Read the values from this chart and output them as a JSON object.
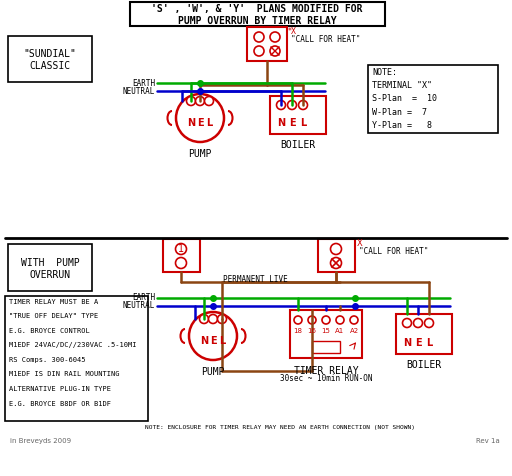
{
  "bg_color": "#ffffff",
  "red": "#cc0000",
  "green": "#00aa00",
  "blue": "#0000cc",
  "brown": "#8B4513",
  "black": "#000000",
  "gray": "#666666",
  "title_line1": "'S' , 'W', & 'Y'  PLANS MODIFIED FOR",
  "title_line2": "PUMP OVERRUN BY TIMER RELAY",
  "sundial_label1": "\"SUNDIAL\"",
  "sundial_label2": "CLASSIC",
  "with_pump1": "WITH  PUMP",
  "with_pump2": "OVERRUN",
  "earth_label": "EARTH",
  "neutral_label": "NEUTRAL",
  "perm_live": "PERMANENT LIVE",
  "call_heat": "\"CALL FOR HEAT\"",
  "pump_label": "PUMP",
  "boiler_label": "BOILER",
  "timer_label": "TIMER RELAY",
  "timer_sub": "30sec ~ 10min RUN-ON",
  "note_box": "NOTE:\nTERMINAL \"X\"\nS-Plan  =  10\nW-Plan =  7\nY-Plan =   8",
  "timer_note_lines": [
    "TIMER RELAY MUST BE A",
    "\"TRUE OFF DELAY\" TYPE",
    "E.G. BROYCE CONTROL",
    "M1EDF 24VAC/DC//230VAC .5-10MI",
    "RS Comps. 300-6045",
    "M1EDF IS DIN RAIL MOUNTING",
    "ALTERNATIVE PLUG-IN TYPE",
    "E.G. BROYCE B8DF OR B1DF"
  ],
  "bottom_note": "NOTE: ENCLOSURE FOR TIMER RELAY MAY NEED AN EARTH CONNECTION (NOT SHOWN)",
  "copyright": "in Breveyds 2009",
  "rev": "Rev 1a"
}
